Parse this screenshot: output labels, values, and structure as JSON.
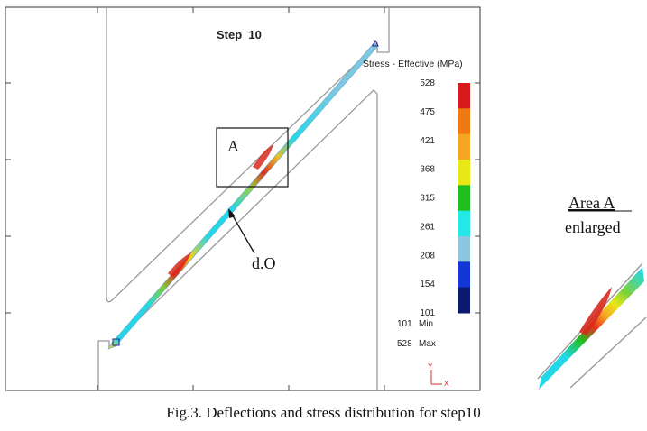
{
  "figure": {
    "step_title": "Step  10",
    "legend_title": "Stress - Effective (MPa)",
    "legend_ticks": [
      "528",
      "475",
      "421",
      "368",
      "315",
      "261",
      "208",
      "154",
      "101"
    ],
    "legend_colors": [
      "#d7191c",
      "#f07a10",
      "#f5a623",
      "#e8e817",
      "#1fbf1f",
      "#22e8e8",
      "#8ec6df",
      "#1436d6",
      "#0a1a6e"
    ],
    "min_label": "Min",
    "min_value": "101",
    "max_label": "Max",
    "max_value": "528",
    "axis_y": "Y",
    "axis_x": "X",
    "area_label": "A",
    "pointer_label": "d.O",
    "inset_title": "Area A",
    "inset_subtitle": "enlarged",
    "caption": "Fig.3. Deflections and stress distribution for step10"
  }
}
